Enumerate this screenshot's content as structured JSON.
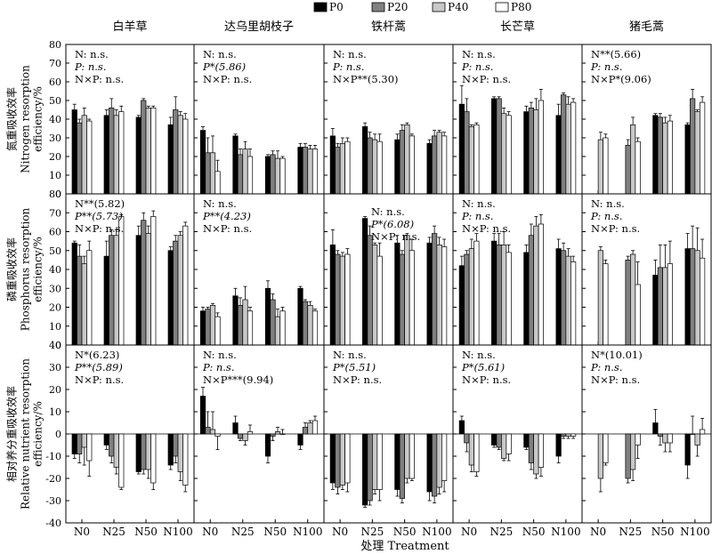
{
  "legend": [
    {
      "label": "P0",
      "color": "#000000"
    },
    {
      "label": "P20",
      "color": "#808080"
    },
    {
      "label": "P40",
      "color": "#c8c8c8"
    },
    {
      "label": "P80",
      "color": "#ffffff"
    }
  ],
  "species": [
    "白羊草",
    "达乌里胡枝子",
    "铁杆蒿",
    "长芒草",
    "猪毛蒿"
  ],
  "xlabel": "处理 Treatment",
  "categories": [
    "N0",
    "N25",
    "N50",
    "N100"
  ],
  "rows": [
    {
      "ylabel_cn": "氮重吸收效率",
      "ylabel_en1": "Nitrogen resorption",
      "ylabel_en2": "efficiency/%",
      "ylim": [
        0,
        80
      ],
      "ticks": [
        "0",
        "10",
        "20",
        "30",
        "40",
        "50",
        "60",
        "70",
        "80"
      ]
    },
    {
      "ylabel_cn": "磷重吸收效率",
      "ylabel_en1": "Phosphorus resorption",
      "ylabel_en2": "efficiency/%",
      "ylim": [
        0,
        80
      ],
      "ticks": [
        "0",
        "10",
        "20",
        "30",
        "40",
        "50",
        "60",
        "70",
        "80"
      ]
    },
    {
      "ylabel_cn": "相对养分重吸收效率",
      "ylabel_en1": "Relative nutrient resorption",
      "ylabel_en2": "efficiency/%",
      "ylim": [
        -40,
        40
      ],
      "ticks": [
        "-40",
        "-30",
        "-20",
        "-10",
        "0",
        "10",
        "20",
        "30",
        "40"
      ]
    }
  ],
  "stats": [
    [
      [
        "N: n.s.",
        "P: n.s.",
        "N×P: n.s."
      ],
      [
        "N: n.s.",
        "P*(5.86)",
        "N×P: n.s."
      ],
      [
        "N: n.s.",
        "P: n.s.",
        "N×P**(5.30)"
      ],
      [
        "N: n.s.",
        "P: n.s.",
        "N×P: n.s."
      ],
      [
        "N**(5.66)",
        "P: n.s.",
        "N×P*(9.06)"
      ]
    ],
    [
      [
        "N**(5.82)",
        "P**(5.73)",
        "N×P: n.s."
      ],
      [
        "N: n.s.",
        "P**(4.23)",
        "N×P: n.s."
      ],
      [
        "N: n.s.",
        "P*(6.08)",
        "N×P: n.s."
      ],
      [
        "N: n.s.",
        "P: n.s.",
        "N×P: n.s."
      ],
      [
        "N: n.s.",
        "P: n.s.",
        "N×P: n.s."
      ]
    ],
    [
      [
        "N*(6.23)",
        "P**(5.89)",
        "N×P: n.s."
      ],
      [
        "N: n.s.",
        "P: n.s.",
        "N×P***(9.94)"
      ],
      [
        "N: n.s.",
        "P*(5.51)",
        "N×P: n.s."
      ],
      [
        "N: n.s.",
        "P*(5.61)",
        "N×P: n.s."
      ],
      [
        "N*(10.01)",
        "P: n.s.",
        "N×P: n.s."
      ]
    ]
  ],
  "chart_data": {
    "type": "bar",
    "series": [
      "P0",
      "P20",
      "P40",
      "P80"
    ],
    "categories": [
      "N0",
      "N25",
      "N50",
      "N100"
    ],
    "panels": [
      [
        {
          "v": [
            [
              45,
              38,
              42,
              39
            ],
            [
              42,
              46,
              42,
              44
            ],
            [
              41,
              50,
              46,
              46
            ],
            [
              37,
              45,
              42,
              40
            ]
          ],
          "e": [
            [
              3,
              2,
              4,
              1
            ],
            [
              3,
              5,
              3,
              3
            ],
            [
              1,
              1,
              1,
              1
            ],
            [
              4,
              7,
              2,
              3
            ]
          ]
        },
        {
          "v": [
            [
              34,
              22,
              22,
              12
            ],
            [
              31,
              21,
              24,
              20
            ],
            [
              20,
              21,
              19,
              19
            ],
            [
              25,
              25,
              24,
              24
            ]
          ],
          "e": [
            [
              2,
              8,
              9,
              6
            ],
            [
              1,
              3,
              4,
              4
            ],
            [
              1,
              2,
              4,
              1
            ],
            [
              2,
              2,
              2,
              2
            ]
          ]
        },
        {
          "v": [
            [
              31,
              25,
              27,
              28
            ],
            [
              36,
              30,
              29,
              28
            ],
            [
              29,
              34,
              37,
              31
            ],
            [
              27,
              31,
              33,
              31
            ]
          ],
          "e": [
            [
              4,
              2,
              3,
              2
            ],
            [
              2,
              3,
              3,
              4
            ],
            [
              3,
              3,
              1,
              1
            ],
            [
              2,
              3,
              1,
              2
            ]
          ]
        },
        {
          "v": [
            [
              48,
              44,
              36,
              37
            ],
            [
              51,
              51,
              43,
              42
            ],
            [
              44,
              46,
              45,
              50
            ],
            [
              42,
              53,
              48,
              49
            ]
          ],
          "e": [
            [
              10,
              7,
              1,
              1
            ],
            [
              1,
              1,
              3,
              2
            ],
            [
              3,
              3,
              6,
              6
            ],
            [
              6,
              1,
              4,
              2
            ]
          ]
        },
        {
          "v": [
            [
              null,
              null,
              29,
              30
            ],
            [
              null,
              26,
              37,
              28
            ],
            [
              42,
              41,
              38,
              39
            ],
            [
              37,
              51,
              44,
              49
            ]
          ],
          "e": [
            [
              0,
              0,
              4,
              2
            ],
            [
              0,
              3,
              4,
              2
            ],
            [
              1,
              2,
              3,
              3
            ],
            [
              1,
              5,
              1,
              3
            ]
          ]
        }
      ],
      [
        {
          "v": [
            [
              54,
              47,
              43,
              50
            ],
            [
              47,
              58,
              58,
              68
            ],
            [
              58,
              66,
              59,
              68
            ],
            [
              50,
              55,
              58,
              63
            ]
          ],
          "e": [
            [
              1,
              6,
              4,
              5
            ],
            [
              8,
              3,
              3,
              1
            ],
            [
              5,
              4,
              4,
              3
            ],
            [
              2,
              3,
              2,
              2
            ]
          ]
        },
        {
          "v": [
            [
              18,
              19,
              21,
              15
            ],
            [
              26,
              21,
              24,
              18
            ],
            [
              30,
              24,
              15,
              18
            ],
            [
              30,
              23,
              21,
              18
            ]
          ],
          "e": [
            [
              2,
              1,
              1,
              2
            ],
            [
              4,
              4,
              7,
              2
            ],
            [
              4,
              3,
              4,
              2
            ],
            [
              1,
              1,
              2,
              1
            ]
          ]
        },
        {
          "v": [
            [
              53,
              48,
              47,
              48
            ],
            [
              67,
              58,
              53,
              47
            ],
            [
              54,
              48,
              58,
              50
            ],
            [
              54,
              59,
              53,
              52
            ]
          ],
          "e": [
            [
              8,
              2,
              2,
              3
            ],
            [
              1,
              5,
              1,
              7
            ],
            [
              4,
              2,
              1,
              6
            ],
            [
              3,
              4,
              4,
              4
            ]
          ]
        },
        {
          "v": [
            [
              42,
              48,
              51,
              55
            ],
            [
              55,
              53,
              53,
              49
            ],
            [
              49,
              58,
              63,
              64
            ],
            [
              51,
              50,
              47,
              44
            ]
          ],
          "e": [
            [
              5,
              2,
              5,
              4
            ],
            [
              4,
              6,
              7,
              4
            ],
            [
              4,
              6,
              5,
              5
            ],
            [
              5,
              4,
              4,
              3
            ]
          ]
        },
        {
          "v": [
            [
              null,
              null,
              50,
              43
            ],
            [
              null,
              45,
              48,
              32
            ],
            [
              37,
              41,
              41,
              43
            ],
            [
              51,
              51,
              50,
              46
            ]
          ],
          "e": [
            [
              0,
              0,
              2,
              2
            ],
            [
              0,
              2,
              2,
              12
            ],
            [
              8,
              12,
              12,
              12
            ],
            [
              8,
              12,
              12,
              10
            ]
          ]
        }
      ],
      [
        {
          "v": [
            [
              -9,
              -9,
              -6,
              -12
            ],
            [
              -5,
              -10,
              -15,
              -24
            ],
            [
              -17,
              -16,
              -16,
              -22
            ],
            [
              -14,
              -10,
              -17,
              -23
            ]
          ],
          "e": [
            [
              2,
              4,
              8,
              7
            ],
            [
              2,
              3,
              3,
              1
            ],
            [
              1,
              2,
              4,
              3
            ],
            [
              2,
              3,
              4,
              3
            ]
          ]
        },
        {
          "v": [
            [
              17,
              3,
              2,
              -1
            ],
            [
              5,
              -2,
              -3,
              1
            ],
            [
              -10,
              -1,
              1,
              0
            ],
            [
              -5,
              3,
              5,
              6
            ]
          ],
          "e": [
            [
              4,
              7,
              8,
              6
            ],
            [
              3,
              1,
              2,
              3
            ],
            [
              3,
              2,
              2,
              2
            ],
            [
              2,
              2,
              1,
              2
            ]
          ]
        },
        {
          "v": [
            [
              -22,
              -24,
              -23,
              -22
            ],
            [
              -32,
              -30,
              -25,
              -25
            ],
            [
              -25,
              -29,
              -20,
              -20
            ],
            [
              -26,
              -28,
              -24,
              -21
            ]
          ],
          "e": [
            [
              3,
              3,
              2,
              4
            ],
            [
              1,
              2,
              2,
              5
            ],
            [
              3,
              2,
              2,
              1
            ],
            [
              4,
              3,
              3,
              5
            ]
          ]
        },
        {
          "v": [
            [
              6,
              -4,
              -14,
              -17
            ],
            [
              -5,
              -6,
              -11,
              -9
            ],
            [
              -6,
              -13,
              -18,
              -15
            ],
            [
              -10,
              -1,
              -1,
              -1
            ]
          ],
          "e": [
            [
              2,
              4,
              3,
              2
            ],
            [
              1,
              1,
              1,
              3
            ],
            [
              1,
              3,
              2,
              4
            ],
            [
              3,
              1,
              1,
              1
            ]
          ]
        },
        {
          "v": [
            [
              null,
              null,
              -20,
              -13
            ],
            [
              null,
              -20,
              -16,
              -5
            ],
            [
              5,
              -1,
              -4,
              -4
            ],
            [
              -14,
              0,
              -5,
              2
            ]
          ],
          "e": [
            [
              0,
              0,
              6,
              1
            ],
            [
              0,
              2,
              5,
              6
            ],
            [
              6,
              4,
              4,
              4
            ],
            [
              6,
              8,
              5,
              5
            ]
          ]
        }
      ]
    ]
  }
}
